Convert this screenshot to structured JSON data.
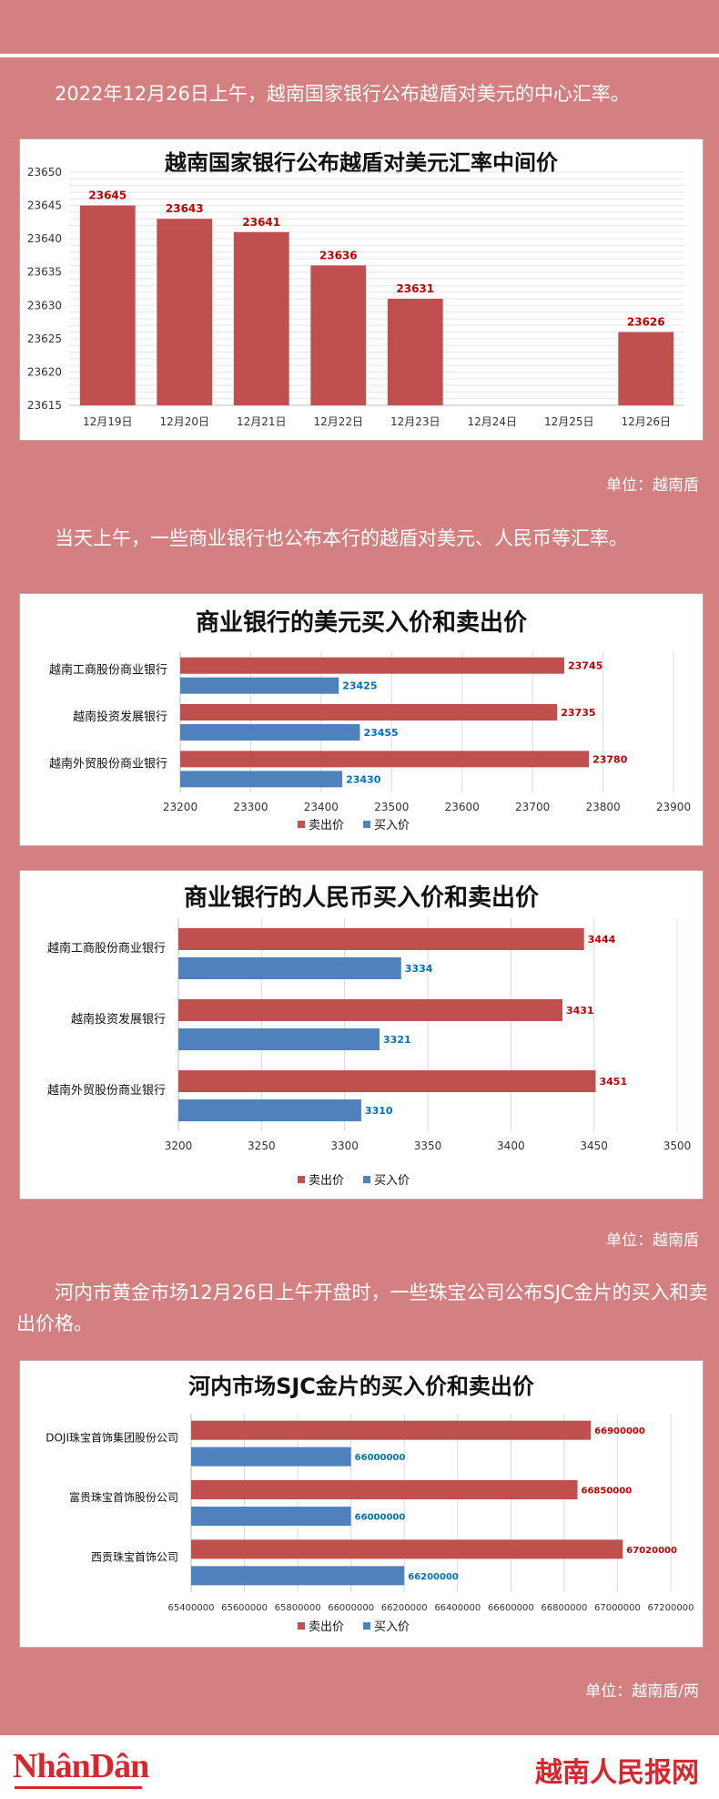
{
  "intro1": "2022年12月26日上午，越南国家银行公布越盾对美元的中心汇率。",
  "unit1": "单位：越南盾",
  "intro2": "当天上午，一些商业银行也公布本行的越盾对美元、人民币等汇率。",
  "unit2": "单位：越南盾",
  "intro3": "河内市黄金市场12月26日上午开盘时，一些珠宝公司公布SJC金片的买入和卖出价格。",
  "unit3": "单位：越南盾/两",
  "footer": {
    "logo": "NhânDân",
    "brand": "越南人民报网"
  },
  "colors": {
    "sell": "#c0504d",
    "buy": "#4f81bd",
    "sell_label": "#c00000",
    "buy_label": "#0070c0",
    "background": "#d47f80"
  },
  "chart_data": [
    {
      "type": "bar",
      "title": "越南国家银行公布越盾对美元汇率中间价",
      "categories": [
        "12月19日",
        "12月20日",
        "12月21日",
        "12月22日",
        "12月23日",
        "12月24日",
        "12月25日",
        "12月26日"
      ],
      "values": [
        23645,
        23643,
        23641,
        23636,
        23631,
        null,
        null,
        23626
      ],
      "ylim": [
        23615,
        23650
      ],
      "yticks": [
        23615,
        23620,
        23625,
        23630,
        23635,
        23640,
        23645,
        23650
      ],
      "grid": true
    },
    {
      "type": "bar",
      "orientation": "horizontal",
      "title": "商业银行的美元买入价和卖出价",
      "categories": [
        "越南工商股份商业银行",
        "越南投资发展银行",
        "越南外贸股份商业银行"
      ],
      "series": [
        {
          "name": "卖出价",
          "values": [
            23745,
            23735,
            23780
          ]
        },
        {
          "name": "买入价",
          "values": [
            23425,
            23455,
            23430
          ]
        }
      ],
      "xlim": [
        23200,
        23900
      ],
      "xticks": [
        23200,
        23300,
        23400,
        23500,
        23600,
        23700,
        23800,
        23900
      ],
      "legend": "bottom",
      "grid": true
    },
    {
      "type": "bar",
      "orientation": "horizontal",
      "title": "商业银行的人民币买入价和卖出价",
      "categories": [
        "越南工商股份商业银行",
        "越南投资发展银行",
        "越南外贸股份商业银行"
      ],
      "series": [
        {
          "name": "卖出价",
          "values": [
            3444,
            3431,
            3451
          ]
        },
        {
          "name": "买入价",
          "values": [
            3334,
            3321,
            3310
          ]
        }
      ],
      "xlim": [
        3200,
        3500
      ],
      "xticks": [
        3200,
        3250,
        3300,
        3350,
        3400,
        3450,
        3500
      ],
      "legend": "bottom",
      "grid": true
    },
    {
      "type": "bar",
      "orientation": "horizontal",
      "title": "河内市场SJC金片的买入价和卖出价",
      "categories": [
        "DOJI珠宝首饰集团股份公司",
        "富贵珠宝首饰股份公司",
        "西贡珠宝首饰公司"
      ],
      "series": [
        {
          "name": "卖出价",
          "values": [
            66900000,
            66850000,
            67020000
          ]
        },
        {
          "name": "买入价",
          "values": [
            66000000,
            66000000,
            66200000
          ]
        }
      ],
      "xlim": [
        65400000,
        67200000
      ],
      "xticks": [
        65400000,
        65600000,
        65800000,
        66000000,
        66200000,
        66400000,
        66600000,
        66800000,
        67000000,
        67200000
      ],
      "legend": "bottom",
      "grid": true
    }
  ]
}
